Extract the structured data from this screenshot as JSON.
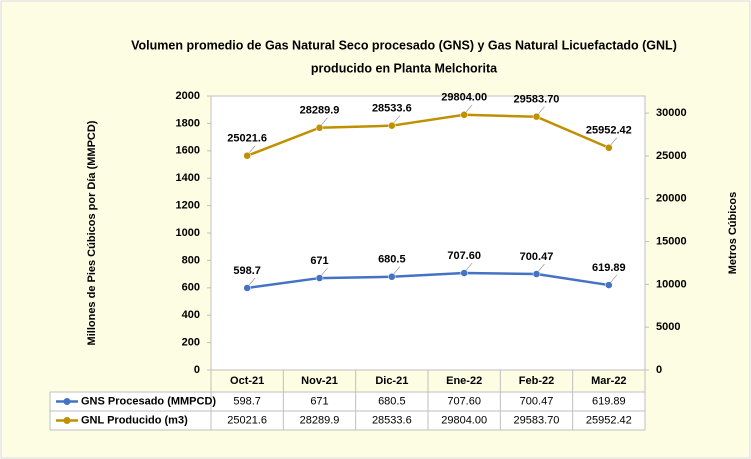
{
  "chart_data": {
    "type": "line",
    "title": [
      "Volumen promedio de Gas Natural Seco procesado (GNS) y Gas Natural Licuefactado (GNL)",
      "producido en Planta Melchorita"
    ],
    "y_label": "Millones de Pies Cúbicos por Día (MMPCD)",
    "y2_label": "Metros Cúbicos",
    "categories": [
      "Oct-21",
      "Nov-21",
      "Dic-21",
      "Ene-22",
      "Feb-22",
      "Mar-22"
    ],
    "series": [
      {
        "name": "GNS Procesado (MMPCD)",
        "color": "#4472c4",
        "axis": "y",
        "values": [
          598.7,
          671,
          680.5,
          707.6,
          700.47,
          619.89
        ],
        "value_labels": [
          "598.7",
          "671",
          "680.5",
          "707.60",
          "700.47",
          "619.89"
        ]
      },
      {
        "name": "GNL Producido (m3)",
        "color": "#bf9000",
        "axis": "y2",
        "values": [
          25021.6,
          28289.9,
          28533.6,
          29804,
          29583.7,
          25952.42
        ],
        "value_labels": [
          "25021.6",
          "28289.9",
          "28533.6",
          "29804.00",
          "29583.70",
          "25952.42"
        ]
      }
    ],
    "ylim": [
      0,
      2000
    ],
    "yticks": [
      0,
      200,
      400,
      600,
      800,
      1000,
      1200,
      1400,
      1600,
      1800,
      2000
    ],
    "y2lim": [
      0,
      32000
    ],
    "y2ticks": [
      0,
      5000,
      10000,
      15000,
      20000,
      25000,
      30000
    ],
    "grid": false
  }
}
